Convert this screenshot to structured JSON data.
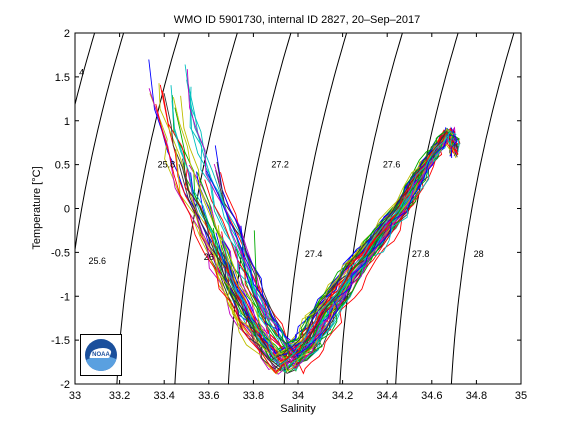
{
  "chart_data": {
    "type": "line",
    "title": "WMO ID 5901730, internal ID 2827, 20–Sep–2017",
    "xlabel": "Salinity",
    "ylabel": "Temperature [°C]",
    "xlim": [
      33,
      35
    ],
    "ylim": [
      -2,
      2
    ],
    "xticks": [
      "33",
      "33.2",
      "33.4",
      "33.6",
      "33.8",
      "34",
      "34.2",
      "34.4",
      "34.6",
      "34.8",
      "35"
    ],
    "yticks": [
      "-2",
      "-1.5",
      "-1",
      "-0.5",
      "0",
      "0.5",
      "1",
      "1.5",
      "2"
    ],
    "grid": false,
    "density_contours": [
      {
        "label": "25.6",
        "s_at_t0": 33.03,
        "label_s": 33.1,
        "label_t": -0.6
      },
      {
        "label": "25.8",
        "s_at_t0": 33.28,
        "label_s": 33.41,
        "label_t": 0.5
      },
      {
        "label": "26",
        "s_at_t0": 33.54,
        "label_s": 33.6,
        "label_t": -0.55
      },
      {
        "label": "27.2",
        "s_at_t0": 33.78,
        "label_s": 33.92,
        "label_t": 0.5
      },
      {
        "label": "27.4",
        "s_at_t0": 34.03,
        "label_s": 34.07,
        "label_t": -0.52
      },
      {
        "label": "27.6",
        "s_at_t0": 34.28,
        "label_s": 34.42,
        "label_t": 0.5
      },
      {
        "label": "27.8",
        "s_at_t0": 34.53,
        "label_s": 34.55,
        "label_t": -0.52
      },
      {
        "label": "28",
        "s_at_t0": 34.78,
        "label_s": 34.81,
        "label_t": -0.52
      },
      {
        "label": "4",
        "s_at_t0": 32.9,
        "label_s": 33.03,
        "label_t": 1.55
      }
    ],
    "profile_count": 60,
    "profile_colors": [
      "#0000ff",
      "#00aa00",
      "#ff0000",
      "#00bfbf",
      "#bf00bf",
      "#bfbf00",
      "#333333"
    ],
    "profile_shape": [
      [
        33.45,
        1.25
      ],
      [
        33.55,
        0.3
      ],
      [
        33.7,
        -0.6
      ],
      [
        33.82,
        -1.3
      ],
      [
        33.95,
        -1.78
      ],
      [
        34.05,
        -1.55
      ],
      [
        34.15,
        -1.1
      ],
      [
        34.3,
        -0.55
      ],
      [
        34.45,
        -0.05
      ],
      [
        34.58,
        0.5
      ],
      [
        34.68,
        0.88
      ],
      [
        34.7,
        0.7
      ]
    ]
  },
  "logo": {
    "text": "NOAA"
  }
}
